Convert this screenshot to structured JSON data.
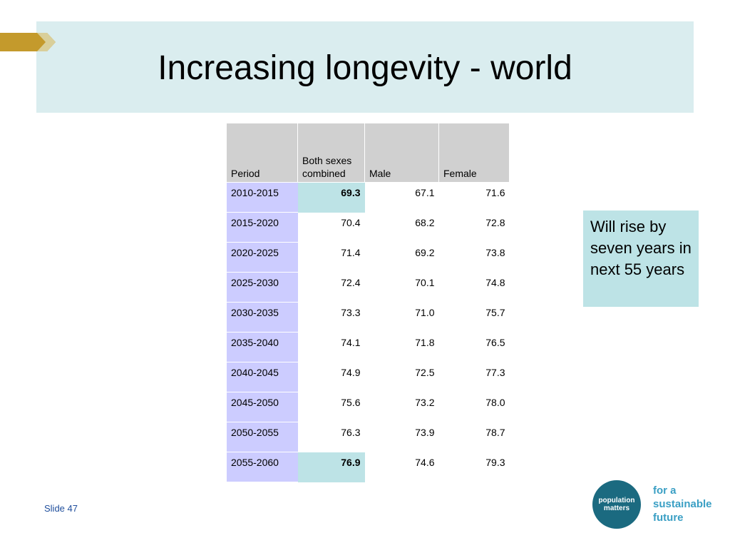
{
  "slide": {
    "title": "Increasing longevity - world",
    "slide_number": "Slide 47",
    "note": "Will rise by seven years in next 55 years"
  },
  "table": {
    "headers": [
      "Period",
      "Both sexes combined",
      "Male",
      "Female"
    ],
    "rows": [
      [
        "2010-2015",
        "69.3",
        "67.1",
        "71.6"
      ],
      [
        "2015-2020",
        "70.4",
        "68.2",
        "72.8"
      ],
      [
        "2020-2025",
        "71.4",
        "69.2",
        "73.8"
      ],
      [
        "2025-2030",
        "72.4",
        "70.1",
        "74.8"
      ],
      [
        "2030-2035",
        "73.3",
        "71.0",
        "75.7"
      ],
      [
        "2035-2040",
        "74.1",
        "71.8",
        "76.5"
      ],
      [
        "2040-2045",
        "74.9",
        "72.5",
        "77.3"
      ],
      [
        "2045-2050",
        "75.6",
        "73.2",
        "78.0"
      ],
      [
        "2050-2055",
        "76.3",
        "73.9",
        "78.7"
      ],
      [
        "2055-2060",
        "76.9",
        "74.6",
        "79.3"
      ]
    ],
    "highlighted_rows": [
      0,
      9
    ]
  },
  "logo": {
    "circle_text": "population matters",
    "tagline": [
      "for a",
      "sustainable",
      "future"
    ]
  },
  "colors": {
    "title_band": "#daedef",
    "accent_gold": "#c49a2c",
    "period_column": "#ccccff",
    "highlight": "#bde3e6",
    "logo": "#1b6a80"
  }
}
